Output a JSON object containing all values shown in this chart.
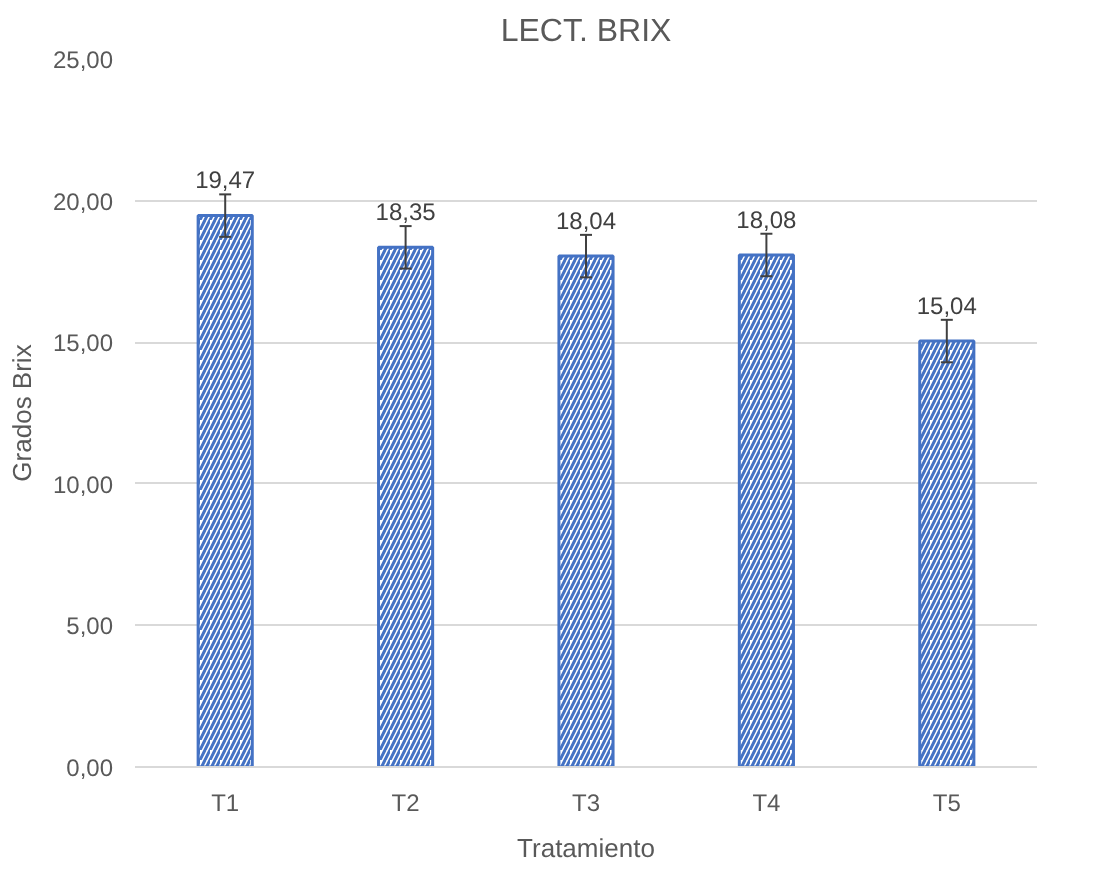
{
  "chart_data": {
    "type": "bar",
    "title": "LECT. BRIX",
    "xlabel": "Tratamiento",
    "ylabel": "Grados Brix",
    "categories": [
      "T1",
      "T2",
      "T3",
      "T4",
      "T5"
    ],
    "values": [
      19.47,
      18.35,
      18.04,
      18.08,
      15.04
    ],
    "value_labels": [
      "19,47",
      "18,35",
      "18,04",
      "18,08",
      "15,04"
    ],
    "errors": [
      0.75,
      0.75,
      0.75,
      0.75,
      0.75
    ],
    "color": "#4472c4",
    "ylim": [
      0,
      25
    ],
    "yticks": [
      {
        "value": 0,
        "label": "0,00"
      },
      {
        "value": 5,
        "label": "5,00"
      },
      {
        "value": 10,
        "label": "10,00"
      },
      {
        "value": 15,
        "label": "15,00"
      },
      {
        "value": 20,
        "label": "20,00"
      },
      {
        "value": 25,
        "label": "25,00"
      }
    ],
    "grid": "y"
  }
}
